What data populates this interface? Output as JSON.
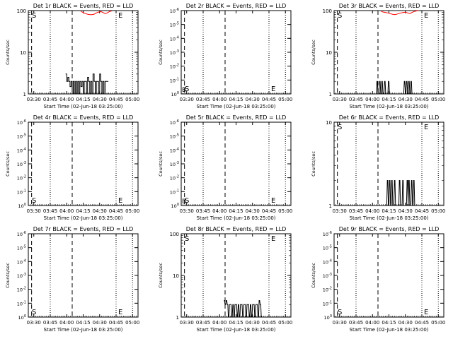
{
  "chart_data": [
    {
      "type": "line",
      "title": "Det 1r BLACK = Events, RED = LLD",
      "ylabel": "Counts/sec",
      "xlabel": "Start Time (02-Jun-18 03:25:00)",
      "yscale": "log",
      "ylim": [
        1,
        100
      ],
      "yticks": [
        {
          "v": 1,
          "label": "1"
        },
        {
          "v": 10,
          "label": "10"
        },
        {
          "v": 100,
          "label": "100"
        }
      ],
      "series": [
        {
          "color": "#000000",
          "x": [
            34,
            35,
            35,
            36,
            36,
            37,
            37,
            38,
            38,
            39,
            39,
            40,
            40,
            41,
            41,
            42,
            42,
            43,
            43,
            44,
            44,
            45,
            45,
            46,
            46,
            47,
            47,
            48,
            48,
            49,
            49,
            50,
            50,
            51,
            51,
            52,
            52,
            53,
            53,
            54,
            54,
            55,
            55,
            56,
            56,
            57,
            57,
            58,
            58,
            59,
            59,
            60,
            60,
            61,
            61,
            62,
            62,
            63,
            63,
            64,
            64,
            65,
            65,
            66,
            66,
            67,
            67,
            68,
            68,
            69,
            69,
            70,
            70,
            71,
            71,
            72,
            72,
            73
          ],
          "y": [
            3,
            3,
            2,
            2,
            2.5,
            2.5,
            2,
            2,
            1.5,
            1.5,
            2,
            2,
            1,
            1,
            2,
            2,
            1,
            1,
            2,
            2,
            1,
            1,
            2,
            2,
            1,
            1,
            2,
            2,
            1.5,
            1.5,
            2,
            2,
            1,
            1,
            2,
            2,
            2,
            2,
            1,
            1,
            2.5,
            2.5,
            2,
            2,
            1,
            1,
            2,
            2,
            1,
            1,
            3,
            3,
            2,
            2,
            1,
            1,
            2,
            2,
            2,
            2,
            1,
            1,
            3,
            3,
            2,
            2,
            1,
            1,
            2,
            2,
            1,
            1,
            2,
            2,
            2,
            2,
            2,
            2
          ]
        },
        {
          "color": "#ff0000",
          "x": [
            48,
            50,
            52,
            54,
            56,
            58,
            60,
            62,
            64,
            66,
            68,
            70,
            72,
            74,
            76
          ],
          "y": [
            95,
            90,
            85,
            82,
            80,
            80,
            82,
            88,
            92,
            95,
            90,
            85,
            88,
            95,
            98
          ]
        }
      ]
    },
    {
      "type": "line",
      "title": "Det 2r BLACK = Events, RED = LLD",
      "ylabel": "Counts/sec",
      "xlabel": "Start Time (02-Jun-18 03:25:00)",
      "yscale": "log",
      "ylim": [
        1,
        1e-06
      ],
      "yticks": [
        {
          "v": 0,
          "label": "10^0"
        },
        {
          "v": 1,
          "label": "10^-1"
        },
        {
          "v": 2,
          "label": "10^-2"
        },
        {
          "v": 3,
          "label": "10^-3"
        },
        {
          "v": 4,
          "label": "10^-4"
        },
        {
          "v": 5,
          "label": "10^-5"
        },
        {
          "v": 6,
          "label": "10^-6"
        }
      ],
      "series": []
    },
    {
      "type": "line",
      "title": "Det 3r BLACK = Events, RED = LLD",
      "ylabel": "Counts/sec",
      "xlabel": "Start Time (02-Jun-18 03:25:00)",
      "yscale": "log",
      "ylim": [
        1,
        100
      ],
      "yticks": [
        {
          "v": 1,
          "label": "1"
        },
        {
          "v": 10,
          "label": "10"
        },
        {
          "v": 100,
          "label": "100"
        }
      ],
      "series": [
        {
          "color": "#000000",
          "x": [
            38,
            38.5,
            39,
            39.5,
            40,
            40.5,
            41,
            41.5,
            42,
            42.5,
            43,
            43.5,
            44,
            44.5,
            45,
            45.5,
            46,
            46.5,
            47,
            47.5,
            48,
            48.5,
            49,
            49.5,
            50,
            50.5,
            51,
            51.5,
            52,
            52.5,
            53,
            53.5,
            54,
            54.5,
            55,
            55.5,
            56,
            56.5,
            57,
            57.5,
            58,
            58.5,
            59,
            59.5,
            60,
            60.5,
            61,
            61.5,
            62,
            62.5,
            63,
            63.5,
            64,
            64.5,
            65,
            65.5,
            66,
            66.5,
            67,
            67.5,
            68,
            68.5,
            69,
            69.5,
            70,
            70.5,
            71,
            71.5,
            72,
            72.5,
            73
          ],
          "y": [
            1,
            1,
            2,
            2,
            1,
            1,
            1,
            2,
            2,
            1,
            1,
            2,
            2,
            1,
            1,
            1,
            2,
            2,
            1,
            1,
            1,
            1,
            1,
            2,
            2,
            1,
            1,
            1,
            1,
            1,
            1,
            1,
            1,
            1,
            1,
            1,
            1,
            1,
            1,
            1,
            1,
            1,
            1,
            1,
            1,
            1,
            1,
            1,
            1,
            1,
            1,
            1,
            2,
            2,
            1,
            1,
            2,
            2,
            1,
            1,
            2,
            2,
            1,
            1,
            2,
            2,
            1,
            1,
            1,
            1,
            1
          ]
        },
        {
          "color": "#ff0000",
          "x": [
            43,
            45,
            47,
            49,
            51,
            53,
            55,
            57,
            59,
            61,
            63,
            65,
            67,
            69,
            71,
            73,
            75,
            77
          ],
          "y": [
            95,
            92,
            90,
            88,
            85,
            82,
            80,
            82,
            85,
            88,
            90,
            92,
            88,
            85,
            90,
            95,
            98,
            100
          ]
        }
      ]
    },
    {
      "type": "line",
      "title": "Det 4r BLACK = Events, RED = LLD",
      "ylabel": "Counts/sec",
      "xlabel": "Start Time (02-Jun-18 03:25:00)",
      "yscale": "log",
      "ylim": [
        1,
        1e-06
      ],
      "yticks": [
        {
          "v": 0,
          "label": "10^0"
        },
        {
          "v": 1,
          "label": "10^-1"
        },
        {
          "v": 2,
          "label": "10^-2"
        },
        {
          "v": 3,
          "label": "10^-3"
        },
        {
          "v": 4,
          "label": "10^-4"
        },
        {
          "v": 5,
          "label": "10^-5"
        },
        {
          "v": 6,
          "label": "10^-6"
        }
      ],
      "series": []
    },
    {
      "type": "line",
      "title": "Det 5r BLACK = Events, RED = LLD",
      "ylabel": "Counts/sec",
      "xlabel": "Start Time (02-Jun-18 03:25:00)",
      "yscale": "log",
      "ylim": [
        1,
        1e-06
      ],
      "yticks": [
        {
          "v": 0,
          "label": "10^0"
        },
        {
          "v": 1,
          "label": "10^-1"
        },
        {
          "v": 2,
          "label": "10^-2"
        },
        {
          "v": 3,
          "label": "10^-3"
        },
        {
          "v": 4,
          "label": "10^-4"
        },
        {
          "v": 5,
          "label": "10^-5"
        },
        {
          "v": 6,
          "label": "10^-6"
        }
      ],
      "series": []
    },
    {
      "type": "line",
      "title": "Det 6r BLACK = Events, RED = LLD",
      "ylabel": "Counts/sec",
      "xlabel": "Start Time (02-Jun-18 03:25:00)",
      "yscale": "log",
      "ylim": [
        1,
        10
      ],
      "yticks": [
        {
          "v": 1,
          "label": "1"
        },
        {
          "v": 10,
          "label": "10"
        }
      ],
      "series": [
        {
          "color": "#000000",
          "x": [
            48,
            48.5,
            49,
            49.5,
            50,
            50.5,
            51,
            51.5,
            52,
            52.5,
            53,
            53.5,
            54,
            54.5,
            55,
            55.5,
            56,
            56.5,
            57,
            57.5,
            58,
            58.5,
            59,
            59.5,
            60,
            60.5,
            61,
            61.5,
            62,
            62.5,
            63,
            63.5,
            64,
            64.5,
            65,
            65.5,
            66,
            66.5,
            67,
            67.5,
            68,
            68.5,
            69,
            69.5,
            70,
            70.5,
            71,
            71.5,
            72,
            72.5,
            73,
            73.5,
            74
          ],
          "y": [
            1,
            2,
            2,
            1,
            1,
            2,
            2,
            1,
            1,
            2,
            2,
            1,
            1,
            1,
            2,
            2,
            1,
            1,
            1,
            1,
            1,
            1,
            1,
            2,
            2,
            1,
            1,
            1,
            1,
            2,
            2,
            1,
            1,
            1,
            1,
            1,
            1,
            2,
            2,
            1,
            2,
            2,
            1,
            1,
            1,
            2,
            2,
            1,
            1,
            2,
            2,
            1,
            1
          ]
        }
      ]
    },
    {
      "type": "line",
      "title": "Det 7r BLACK = Events, RED = LLD",
      "ylabel": "Counts/sec",
      "xlabel": "Start Time (02-Jun-18 03:25:00)",
      "yscale": "log",
      "ylim": [
        1,
        1e-06
      ],
      "yticks": [
        {
          "v": 0,
          "label": "10^0"
        },
        {
          "v": 1,
          "label": "10^-1"
        },
        {
          "v": 2,
          "label": "10^-2"
        },
        {
          "v": 3,
          "label": "10^-3"
        },
        {
          "v": 4,
          "label": "10^-4"
        },
        {
          "v": 5,
          "label": "10^-5"
        },
        {
          "v": 6,
          "label": "10^-6"
        }
      ],
      "series": []
    },
    {
      "type": "line",
      "title": "Det 8r BLACK = Events, RED = LLD",
      "ylabel": "Counts/sec",
      "xlabel": "Start Time (02-Jun-18 03:25:00)",
      "yscale": "log",
      "ylim": [
        1,
        100
      ],
      "yticks": [
        {
          "v": 1,
          "label": "1"
        },
        {
          "v": 10,
          "label": "10"
        },
        {
          "v": 100,
          "label": "100"
        }
      ],
      "series": [
        {
          "color": "#000000",
          "x": [
            39,
            39.5,
            40,
            40.5,
            41,
            41.5,
            42,
            42.5,
            43,
            43.5,
            44,
            44.5,
            45,
            45.5,
            46,
            46.5,
            47,
            47.5,
            48,
            48.5,
            49,
            49.5,
            50,
            50.5,
            51,
            51.5,
            52,
            52.5,
            53,
            53.5,
            54,
            54.5,
            55,
            55.5,
            56,
            56.5,
            57,
            57.5,
            58,
            58.5,
            59,
            59.5,
            60,
            60.5,
            61,
            61.5,
            62,
            62.5,
            63,
            63.5,
            64,
            64.5,
            65,
            65.5,
            66,
            66.5,
            67,
            67.5,
            68,
            68.5,
            69,
            69.5,
            70,
            70.5,
            71,
            71.5,
            72,
            72.5,
            73
          ],
          "y": [
            2.5,
            2.5,
            2,
            2,
            2.5,
            2.5,
            2,
            2,
            1,
            1,
            2,
            2,
            2,
            2,
            1,
            1,
            2,
            2,
            1,
            1,
            2,
            2,
            2,
            2,
            1,
            1,
            2,
            2,
            1,
            1,
            2,
            2,
            2,
            2,
            1,
            1,
            2,
            2,
            2,
            2,
            1,
            1,
            2,
            2,
            2,
            2,
            1,
            1,
            2,
            2,
            1,
            1,
            2,
            2,
            2,
            2,
            1,
            1,
            2,
            2,
            2,
            2,
            1,
            1,
            2.5,
            2.5,
            2,
            2,
            1
          ]
        }
      ]
    },
    {
      "type": "line",
      "title": "Det 9r BLACK = Events, RED = LLD",
      "ylabel": "Counts/sec",
      "xlabel": "Start Time (02-Jun-18 03:25:00)",
      "yscale": "log",
      "ylim": [
        1,
        1e-06
      ],
      "yticks": [
        {
          "v": 0,
          "label": "10^0"
        },
        {
          "v": 1,
          "label": "10^-1"
        },
        {
          "v": 2,
          "label": "10^-2"
        },
        {
          "v": 3,
          "label": "10^-3"
        },
        {
          "v": 4,
          "label": "10^-4"
        },
        {
          "v": 5,
          "label": "10^-5"
        },
        {
          "v": 6,
          "label": "10^-6"
        }
      ],
      "series": []
    }
  ],
  "shared": {
    "xlim": [
      0,
      100
    ],
    "xticks": [
      {
        "v": 5,
        "label": "03:30"
      },
      {
        "v": 20,
        "label": "03:45"
      },
      {
        "v": 35,
        "label": "04:00"
      },
      {
        "v": 50,
        "label": "04:15"
      },
      {
        "v": 65,
        "label": "04:30"
      },
      {
        "v": 80,
        "label": "04:45"
      },
      {
        "v": 95,
        "label": "05:00"
      }
    ],
    "dotted_lines": [
      20,
      80,
      95
    ],
    "dashed_lines": [
      3,
      40
    ],
    "markers": {
      "S_label": "S",
      "E_label": "E",
      "B_label": "B"
    }
  }
}
